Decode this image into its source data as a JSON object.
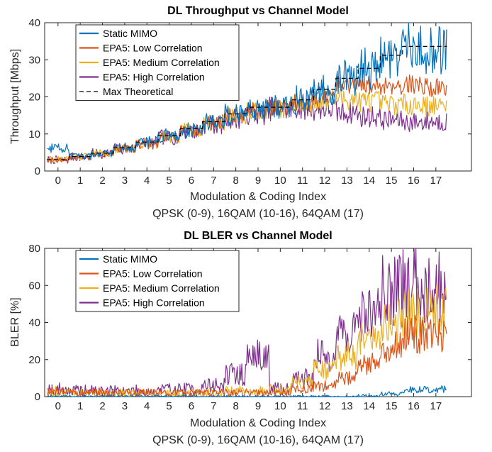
{
  "colors": {
    "static": "#0072BD",
    "low": "#D95319",
    "medium": "#EDB120",
    "high": "#7E2F8E",
    "max": "#000000",
    "axis": "#262626"
  },
  "chart_data": [
    {
      "type": "line",
      "title": "DL Throughput vs Channel Model",
      "xlabel": "Modulation & Coding Index",
      "xlabel2": "QPSK (0-9), 16QAM (10-16), 64QAM (17)",
      "ylabel": "Throughput [Mbps]",
      "xlim": [
        -0.6,
        18.6
      ],
      "ylim": [
        0,
        40
      ],
      "xticks": [
        "0",
        "1",
        "2",
        "3",
        "4",
        "5",
        "6",
        "7",
        "8",
        "9",
        "10",
        "11",
        "12",
        "13",
        "14",
        "15",
        "16",
        "17"
      ],
      "yticks": [
        "0",
        "10",
        "20",
        "30",
        "40"
      ],
      "legend_position": "top-left",
      "legend": [
        "Static MIMO",
        "EPA5: Low Correlation",
        "EPA5: Medium Correlation",
        "EPA5: High Correlation",
        "Max Theoretical"
      ],
      "series": [
        {
          "name": "Static MIMO",
          "x": [
            0,
            1,
            2,
            3,
            4,
            5,
            6,
            7,
            8,
            9,
            10,
            11,
            12,
            13,
            14,
            15,
            16,
            17
          ],
          "values": [
            6.2,
            3.9,
            4.8,
            6.3,
            7.8,
            9.5,
            11.2,
            13.3,
            15.3,
            17.2,
            17.2,
            19.1,
            21.9,
            24.9,
            27.6,
            31.0,
            33.4,
            32.4
          ]
        },
        {
          "name": "EPA5: Low Correlation",
          "x": [
            0,
            1,
            2,
            3,
            4,
            5,
            6,
            7,
            8,
            9,
            10,
            11,
            12,
            13,
            14,
            15,
            16,
            17
          ],
          "values": [
            3.0,
            3.8,
            4.7,
            6.0,
            7.5,
            9.2,
            11.0,
            13.0,
            15.0,
            16.8,
            17.0,
            18.5,
            20.5,
            23.0,
            23.0,
            23.2,
            23.3,
            22.5
          ]
        },
        {
          "name": "EPA5: Medium Correlation",
          "x": [
            0,
            1,
            2,
            3,
            4,
            5,
            6,
            7,
            8,
            9,
            10,
            11,
            12,
            13,
            14,
            15,
            16,
            17
          ],
          "values": [
            3.0,
            3.8,
            4.7,
            6.0,
            7.5,
            9.2,
            11.0,
            13.0,
            15.0,
            16.5,
            16.9,
            18.0,
            19.2,
            19.5,
            18.8,
            18.0,
            18.0,
            17.5
          ]
        },
        {
          "name": "EPA5: High Correlation",
          "x": [
            0,
            1,
            2,
            3,
            4,
            5,
            6,
            7,
            8,
            9,
            10,
            11,
            12,
            13,
            14,
            15,
            16,
            17
          ],
          "values": [
            3.0,
            3.8,
            4.7,
            6.0,
            7.5,
            9.1,
            10.8,
            12.6,
            14.2,
            15.5,
            16.8,
            17.0,
            16.8,
            15.8,
            14.7,
            13.8,
            13.2,
            13.4
          ]
        },
        {
          "name": "Max Theoretical",
          "x": [
            0,
            1,
            2,
            3,
            4,
            5,
            6,
            7,
            8,
            9,
            10,
            11,
            12,
            13,
            14,
            15,
            16,
            17
          ],
          "values": [
            3.1,
            3.9,
            4.8,
            6.3,
            7.8,
            9.5,
            11.4,
            13.3,
            15.4,
            17.2,
            17.2,
            19.2,
            22.0,
            25.0,
            27.7,
            31.2,
            33.6,
            33.6
          ]
        }
      ]
    },
    {
      "type": "line",
      "title": "DL BLER vs Channel Model",
      "xlabel": "Modulation & Coding Index",
      "xlabel2": "QPSK (0-9), 16QAM (10-16), 64QAM (17)",
      "ylabel": "BLER [%]",
      "xlim": [
        -0.6,
        18.6
      ],
      "ylim": [
        0,
        80
      ],
      "xticks": [
        "0",
        "1",
        "2",
        "3",
        "4",
        "5",
        "6",
        "7",
        "8",
        "9",
        "10",
        "11",
        "12",
        "13",
        "14",
        "15",
        "16",
        "17"
      ],
      "yticks": [
        "0",
        "20",
        "40",
        "60",
        "80"
      ],
      "legend_position": "top-left",
      "legend": [
        "Static MIMO",
        "EPA5: Low Correlation",
        "EPA5: Medium Correlation",
        "EPA5: High Correlation"
      ],
      "series": [
        {
          "name": "Static MIMO",
          "x": [
            0,
            1,
            2,
            3,
            4,
            5,
            6,
            7,
            8,
            9,
            10,
            11,
            12,
            13,
            14,
            15,
            16,
            17
          ],
          "values": [
            0,
            0,
            0,
            0,
            0,
            0,
            0,
            0,
            0,
            0,
            0,
            0,
            0,
            0,
            0.5,
            1.5,
            4,
            4
          ]
        },
        {
          "name": "EPA5: Low Correlation",
          "x": [
            0,
            1,
            2,
            3,
            4,
            5,
            6,
            7,
            8,
            9,
            10,
            11,
            12,
            13,
            14,
            15,
            16,
            17
          ],
          "values": [
            3,
            2,
            2,
            2,
            2,
            2,
            2,
            2,
            2,
            2,
            2,
            4,
            6,
            10,
            18,
            27,
            34,
            32
          ]
        },
        {
          "name": "EPA5: Medium Correlation",
          "x": [
            0,
            1,
            2,
            3,
            4,
            5,
            6,
            7,
            8,
            9,
            10,
            11,
            12,
            13,
            14,
            15,
            16,
            17
          ],
          "values": [
            3,
            2,
            2,
            2,
            2,
            2,
            2,
            2,
            3,
            3,
            4,
            8,
            14,
            22,
            30,
            40,
            45,
            47
          ]
        },
        {
          "name": "EPA5: High Correlation",
          "x": [
            0,
            1,
            2,
            3,
            4,
            5,
            6,
            7,
            8,
            9,
            10,
            11,
            12,
            13,
            14,
            15,
            16,
            17
          ],
          "values": [
            4,
            3,
            3,
            3,
            3,
            4,
            4,
            6,
            12,
            22,
            4,
            10,
            22,
            35,
            45,
            57,
            60,
            60
          ]
        }
      ]
    }
  ]
}
